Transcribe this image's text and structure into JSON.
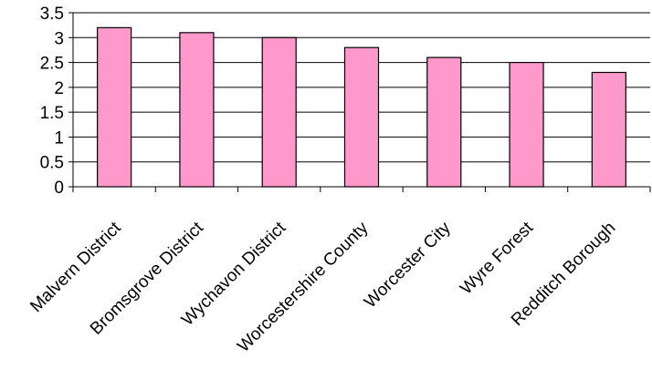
{
  "chart_data": {
    "type": "bar",
    "title": "",
    "xlabel": "",
    "ylabel": "",
    "categories": [
      "Malvern District",
      "Bromsgrove District",
      "Wychavon District",
      "Worcestershire County",
      "Worcester City",
      "Wyre Forest",
      "Redditch Borough"
    ],
    "values": [
      3.2,
      3.1,
      3.0,
      2.8,
      2.6,
      2.5,
      2.3
    ],
    "ylim": [
      0,
      3.5
    ],
    "yticks": [
      "0",
      "0.5",
      "1",
      "1.5",
      "2",
      "2.5",
      "3",
      "3.5"
    ],
    "grid": true,
    "legend": "none",
    "colors": {
      "bar_fill": "#ff99cc",
      "bar_stroke": "#000000",
      "gridline": "#000000"
    }
  }
}
